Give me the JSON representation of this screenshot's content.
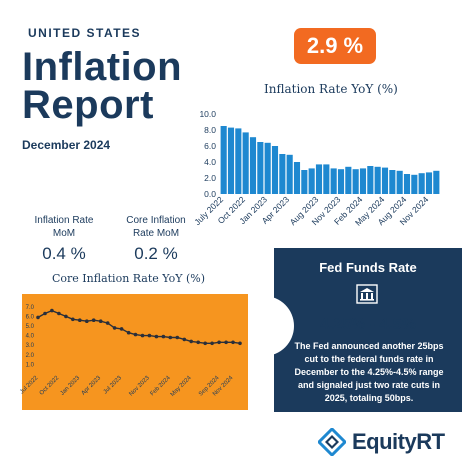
{
  "header": {
    "country": "UNITED STATES",
    "title_line1": "Inflation",
    "title_line2": "Report",
    "period": "December 2024",
    "headline_rate": "2.9 %"
  },
  "stats": {
    "mom_label_line1": "Inflation Rate",
    "mom_label_line2": "MoM",
    "mom_value": "0.4 %",
    "core_mom_label_line1": "Core Inflation",
    "core_mom_label_line2": "Rate MoM",
    "core_mom_value": "0.2 %"
  },
  "fed": {
    "title": "Fed Funds Rate",
    "range": "4.25% - 4.5%",
    "text": "The Fed announced another 25bps cut to the federal funds rate in December to the 4.25%-4.5% range and signaled just two rate cuts in 2025, totaling 50bps."
  },
  "brand": {
    "name": "EquityRT"
  },
  "colors": {
    "navy": "#1b3a5c",
    "orange": "#f26a21",
    "bar_blue": "#1e88d0",
    "core_bg": "#f6951f"
  },
  "chart_data": [
    {
      "type": "bar",
      "title": "Inflation Rate YoY (%)",
      "categories": [
        "Jul 2022",
        "Aug 2022",
        "Sep 2022",
        "Oct 2022",
        "Nov 2022",
        "Dec 2022",
        "Jan 2023",
        "Feb 2023",
        "Mar 2023",
        "Apr 2023",
        "May 2023",
        "Jun 2023",
        "Jul 2023",
        "Aug 2023",
        "Sep 2023",
        "Oct 2023",
        "Nov 2023",
        "Dec 2023",
        "Jan 2024",
        "Feb 2024",
        "Mar 2024",
        "Apr 2024",
        "May 2024",
        "Jun 2024",
        "Jul 2024",
        "Aug 2024",
        "Sep 2024",
        "Oct 2024",
        "Nov 2024",
        "Dec 2024"
      ],
      "values": [
        8.5,
        8.3,
        8.2,
        7.7,
        7.1,
        6.5,
        6.4,
        6.0,
        5.0,
        4.9,
        4.0,
        3.0,
        3.2,
        3.7,
        3.7,
        3.2,
        3.1,
        3.4,
        3.1,
        3.2,
        3.5,
        3.4,
        3.3,
        3.0,
        2.9,
        2.5,
        2.4,
        2.6,
        2.7,
        2.9
      ],
      "tick_labels": [
        "July 2022",
        "Oct 2022",
        "Jan 2023",
        "Apr 2023",
        "Aug 2023",
        "Nov 2023",
        "Feb 2024",
        "May 2024",
        "Aug 2024",
        "Nov 2024"
      ],
      "tick_indices": [
        0,
        3,
        6,
        9,
        13,
        16,
        19,
        22,
        25,
        28
      ],
      "yticks": [
        "0.0",
        "2.0",
        "4.0",
        "6.0",
        "8.0",
        "10.0"
      ],
      "ylim": [
        0,
        10
      ],
      "grid": false
    },
    {
      "type": "line",
      "title": "Core Inflation Rate YoY (%)",
      "x": [
        "Jul 2022",
        "Aug 2022",
        "Sep 2022",
        "Oct 2022",
        "Nov 2022",
        "Dec 2022",
        "Jan 2023",
        "Feb 2023",
        "Mar 2023",
        "Apr 2023",
        "May 2023",
        "Jun 2023",
        "Jul 2023",
        "Aug 2023",
        "Sep 2023",
        "Oct 2023",
        "Nov 2023",
        "Dec 2023",
        "Jan 2024",
        "Feb 2024",
        "Mar 2024",
        "Apr 2024",
        "May 2024",
        "Jun 2024",
        "Jul 2024",
        "Aug 2024",
        "Sep 2024",
        "Oct 2024",
        "Nov 2024",
        "Dec 2024"
      ],
      "values": [
        5.9,
        6.3,
        6.6,
        6.3,
        6.0,
        5.7,
        5.6,
        5.5,
        5.6,
        5.5,
        5.3,
        4.8,
        4.7,
        4.3,
        4.1,
        4.0,
        4.0,
        3.9,
        3.9,
        3.8,
        3.8,
        3.6,
        3.4,
        3.3,
        3.2,
        3.2,
        3.3,
        3.3,
        3.3,
        3.2
      ],
      "tick_labels": [
        "Jul 2022",
        "Oct 2022",
        "Jan 2023",
        "Apr 2023",
        "Jul 2023",
        "Nov 2023",
        "Feb 2024",
        "May 2024",
        "Sep 2024",
        "Nov 2024"
      ],
      "tick_indices": [
        0,
        3,
        6,
        9,
        12,
        16,
        19,
        22,
        26,
        28
      ],
      "yticks": [
        "1.0",
        "2.0",
        "3.0",
        "4.0",
        "5.0",
        "6.0",
        "7.0"
      ],
      "ylim": [
        0,
        7.5
      ],
      "grid": false
    }
  ]
}
